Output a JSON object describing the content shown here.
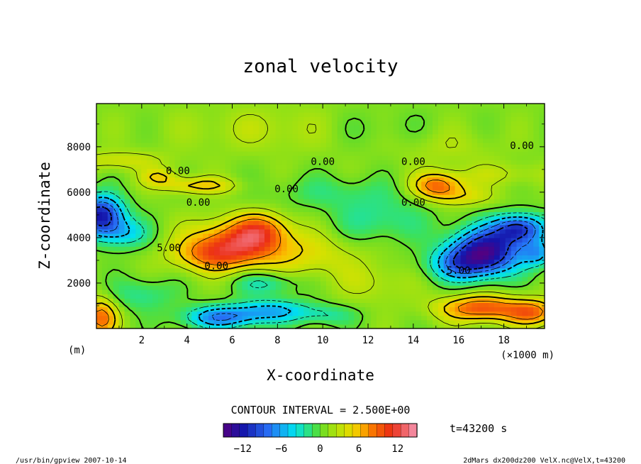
{
  "chart_data": {
    "type": "heatmap",
    "title": "zonal velocity",
    "xlabel": "X-coordinate",
    "ylabel": "Z-coordinate",
    "xunit_left": "(m)",
    "xunit_right": "(×1000 m)",
    "xlim": [
      0,
      19.8
    ],
    "ylim": [
      0,
      9900
    ],
    "xticks": [
      2,
      4,
      6,
      8,
      10,
      12,
      14,
      16,
      18
    ],
    "yticks": [
      2000,
      4000,
      6000,
      8000
    ],
    "ytick_labels": [
      "2000",
      "4000",
      "6000",
      "8000"
    ],
    "contour_interval_text": "CONTOUR INTERVAL = 2.500E+00",
    "time_text": "t=43200 s",
    "colorbar": {
      "range": [
        -15,
        15
      ],
      "ticks": [
        -12,
        -6,
        0,
        6,
        12
      ],
      "tick_labels": [
        "−12",
        "−6",
        "0",
        "6",
        "12"
      ]
    },
    "contour_labels": [
      {
        "text": "0.00",
        "x": 3.6,
        "z": 6800
      },
      {
        "text": "0.00",
        "x": 10.0,
        "z": 7200
      },
      {
        "text": "0.00",
        "x": 8.4,
        "z": 6000
      },
      {
        "text": "0.00",
        "x": 4.5,
        "z": 5400
      },
      {
        "text": "0.00",
        "x": 14.0,
        "z": 7200
      },
      {
        "text": "0.00",
        "x": 18.8,
        "z": 7900
      },
      {
        "text": "0.00",
        "x": 14.0,
        "z": 5400
      },
      {
        "text": "5.00",
        "x": 3.2,
        "z": 3400
      },
      {
        "text": "0.00",
        "x": 5.3,
        "z": 2600
      },
      {
        "text": "5.00",
        "x": 16.0,
        "z": 2400
      }
    ],
    "features": [
      {
        "x": 6.3,
        "z": 3800,
        "sx": 1.5,
        "sz": 700,
        "v": 9
      },
      {
        "x": 7.3,
        "z": 4400,
        "sx": 0.8,
        "sz": 500,
        "v": 5
      },
      {
        "x": 5.0,
        "z": 3200,
        "sx": 1.2,
        "sz": 500,
        "v": 5
      },
      {
        "x": 9.5,
        "z": 3200,
        "sx": 1.6,
        "sz": 700,
        "v": 3
      },
      {
        "x": 4.5,
        "z": 6300,
        "sx": 1.2,
        "sz": 250,
        "v": 5
      },
      {
        "x": 2.8,
        "z": 6700,
        "sx": 0.6,
        "sz": 250,
        "v": 4
      },
      {
        "x": 0.2,
        "z": 5000,
        "sx": 0.7,
        "sz": 600,
        "v": -13
      },
      {
        "x": 1.2,
        "z": 4200,
        "sx": 0.8,
        "sz": 450,
        "v": -5
      },
      {
        "x": 17.2,
        "z": 3400,
        "sx": 1.1,
        "sz": 700,
        "v": -14
      },
      {
        "x": 18.7,
        "z": 4400,
        "sx": 0.8,
        "sz": 450,
        "v": -11
      },
      {
        "x": 16.0,
        "z": 2800,
        "sx": 1.0,
        "sz": 500,
        "v": -6
      },
      {
        "x": 19.5,
        "z": 3300,
        "sx": 0.5,
        "sz": 400,
        "v": -6
      },
      {
        "x": 15.1,
        "z": 6300,
        "sx": 0.8,
        "sz": 400,
        "v": 8
      },
      {
        "x": 16.2,
        "z": 5800,
        "sx": 1.0,
        "sz": 300,
        "v": 3
      },
      {
        "x": 17.0,
        "z": 900,
        "sx": 1.3,
        "sz": 400,
        "v": 9
      },
      {
        "x": 19.3,
        "z": 700,
        "sx": 0.8,
        "sz": 400,
        "v": 7
      },
      {
        "x": 0.2,
        "z": 500,
        "sx": 0.5,
        "sz": 600,
        "v": 8
      },
      {
        "x": 5.5,
        "z": 500,
        "sx": 1.2,
        "sz": 350,
        "v": -8
      },
      {
        "x": 7.8,
        "z": 800,
        "sx": 1.2,
        "sz": 350,
        "v": -6
      },
      {
        "x": 10.2,
        "z": 600,
        "sx": 0.9,
        "sz": 300,
        "v": -3
      },
      {
        "x": 2.0,
        "z": 1500,
        "sx": 1.0,
        "sz": 500,
        "v": -3
      },
      {
        "x": 7.5,
        "z": 2000,
        "sx": 1.0,
        "sz": 350,
        "v": -4
      },
      {
        "x": 12.5,
        "z": 4800,
        "sx": 1.5,
        "sz": 700,
        "v": -3
      },
      {
        "x": 12.2,
        "z": 2000,
        "sx": 1.2,
        "sz": 600,
        "v": 2
      },
      {
        "x": 8.0,
        "z": 8800,
        "sx": 3.0,
        "sz": 700,
        "v": 2
      },
      {
        "x": 12.0,
        "z": 8800,
        "sx": 2.0,
        "sz": 600,
        "v": -1.5
      },
      {
        "x": 15.5,
        "z": 8000,
        "sx": 1.5,
        "sz": 600,
        "v": 1.5
      },
      {
        "x": 10.5,
        "z": 6000,
        "sx": 2.0,
        "sz": 500,
        "v": -2
      },
      {
        "x": 18.0,
        "z": 6800,
        "sx": 1.5,
        "sz": 350,
        "v": 2
      },
      {
        "x": 1.0,
        "z": 7400,
        "sx": 1.5,
        "sz": 300,
        "v": 3
      }
    ]
  },
  "footer": {
    "left": "/usr/bin/gpview   2007-10-14",
    "right": "2dMars_dx200dz200_VelX.nc@VelX,t=43200"
  }
}
